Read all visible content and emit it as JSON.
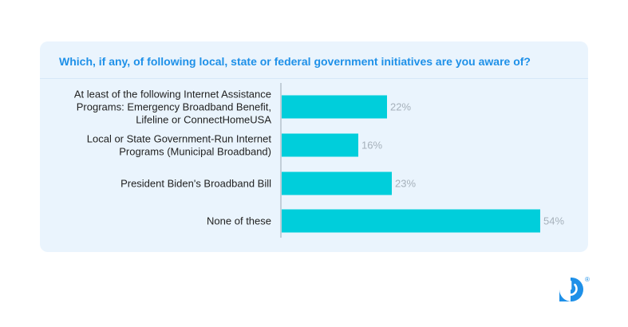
{
  "chart_data": {
    "type": "bar",
    "orientation": "horizontal",
    "title": "Which, if any, of following local, state or federal government initiatives are you aware of?",
    "categories": [
      [
        "At least of the following Internet Assistance",
        "Programs: Emergency Broadband Benefit,",
        "Lifeline or ConnectHomeUSA"
      ],
      [
        "Local or State Government-Run Internet",
        "Programs (Municipal Broadband)"
      ],
      [
        "President Biden's Broadband Bill"
      ],
      [
        "None of these"
      ]
    ],
    "values": [
      22,
      16,
      23,
      54
    ],
    "value_labels": [
      "22%",
      "16%",
      "23%",
      "54%"
    ],
    "unit": "%",
    "xlim": [
      0,
      100
    ],
    "grid": false,
    "legend": "none",
    "bar_color": "#00cedb"
  },
  "colors": {
    "title": "#1e90e8",
    "card_background": "#eaf4fd",
    "value_label": "#a6b1bb",
    "brand": "#1e90e8"
  },
  "logo": {
    "icon": "power-icon",
    "mark": "®"
  }
}
